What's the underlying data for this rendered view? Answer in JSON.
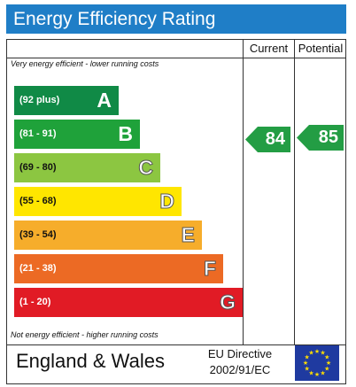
{
  "title": "Energy Efficiency Rating",
  "columns": {
    "current": "Current",
    "potential": "Potential"
  },
  "top_note": "Very energy efficient - lower running costs",
  "bottom_note": "Not energy efficient - higher running costs",
  "bands": [
    {
      "range": "(92 plus)",
      "letter": "A",
      "color": "#108a46"
    },
    {
      "range": "(81 - 91)",
      "letter": "B",
      "color": "#1fa23a"
    },
    {
      "range": "(69 - 80)",
      "letter": "C",
      "color": "#8cc641"
    },
    {
      "range": "(55 - 68)",
      "letter": "D",
      "color": "#ffe600"
    },
    {
      "range": "(39 - 54)",
      "letter": "E",
      "color": "#f6ad2b"
    },
    {
      "range": "(21 - 38)",
      "letter": "F",
      "color": "#ec6a24"
    },
    {
      "range": "(1 - 20)",
      "letter": "G",
      "color": "#e11b25"
    }
  ],
  "current_rating": "84",
  "potential_rating": "85",
  "rating_arrow_color": "#239d44",
  "footer": {
    "country": "England & Wales",
    "directive_line1": "EU Directive",
    "directive_line2": "2002/91/EC"
  },
  "icons": {
    "eu_flag": "eu-flag-icon"
  }
}
